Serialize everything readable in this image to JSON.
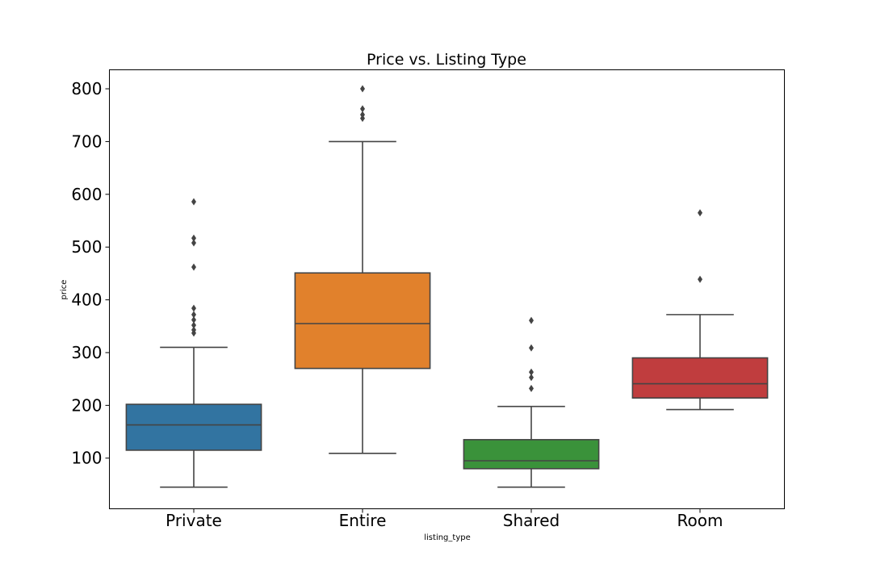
{
  "chart_data": {
    "type": "box",
    "title": "Price vs. Listing Type",
    "xlabel": "listing_type",
    "ylabel": "price",
    "ylim": [
      4,
      836
    ],
    "yticks": [
      100,
      200,
      300,
      400,
      500,
      600,
      700,
      800
    ],
    "ytick_labels": [
      "100",
      "200",
      "300",
      "400",
      "500",
      "600",
      "700",
      "800"
    ],
    "grid": false,
    "legend": "none",
    "categories": [
      "Private",
      "Entire",
      "Shared",
      "Room"
    ],
    "boxes": [
      {
        "category": "Private",
        "color": "#3274a1",
        "whisker_low": 45,
        "q1": 115,
        "median": 163,
        "q3": 202,
        "whisker_high": 310,
        "outliers": [
          337,
          343,
          352,
          362,
          372,
          384,
          462,
          508,
          517,
          586
        ]
      },
      {
        "category": "Entire",
        "color": "#e1812c",
        "whisker_low": 109,
        "q1": 270,
        "median": 355,
        "q3": 451,
        "whisker_high": 700,
        "outliers": [
          744,
          751,
          762,
          800
        ]
      },
      {
        "category": "Shared",
        "color": "#3a923a",
        "whisker_low": 45,
        "q1": 80,
        "median": 95,
        "q3": 135,
        "whisker_high": 198,
        "outliers": [
          232,
          253,
          263,
          309,
          361
        ]
      },
      {
        "category": "Room",
        "color": "#c03d3e",
        "whisker_low": 192,
        "q1": 214,
        "median": 241,
        "q3": 290,
        "whisker_high": 372,
        "outliers": [
          439,
          565
        ]
      }
    ]
  }
}
